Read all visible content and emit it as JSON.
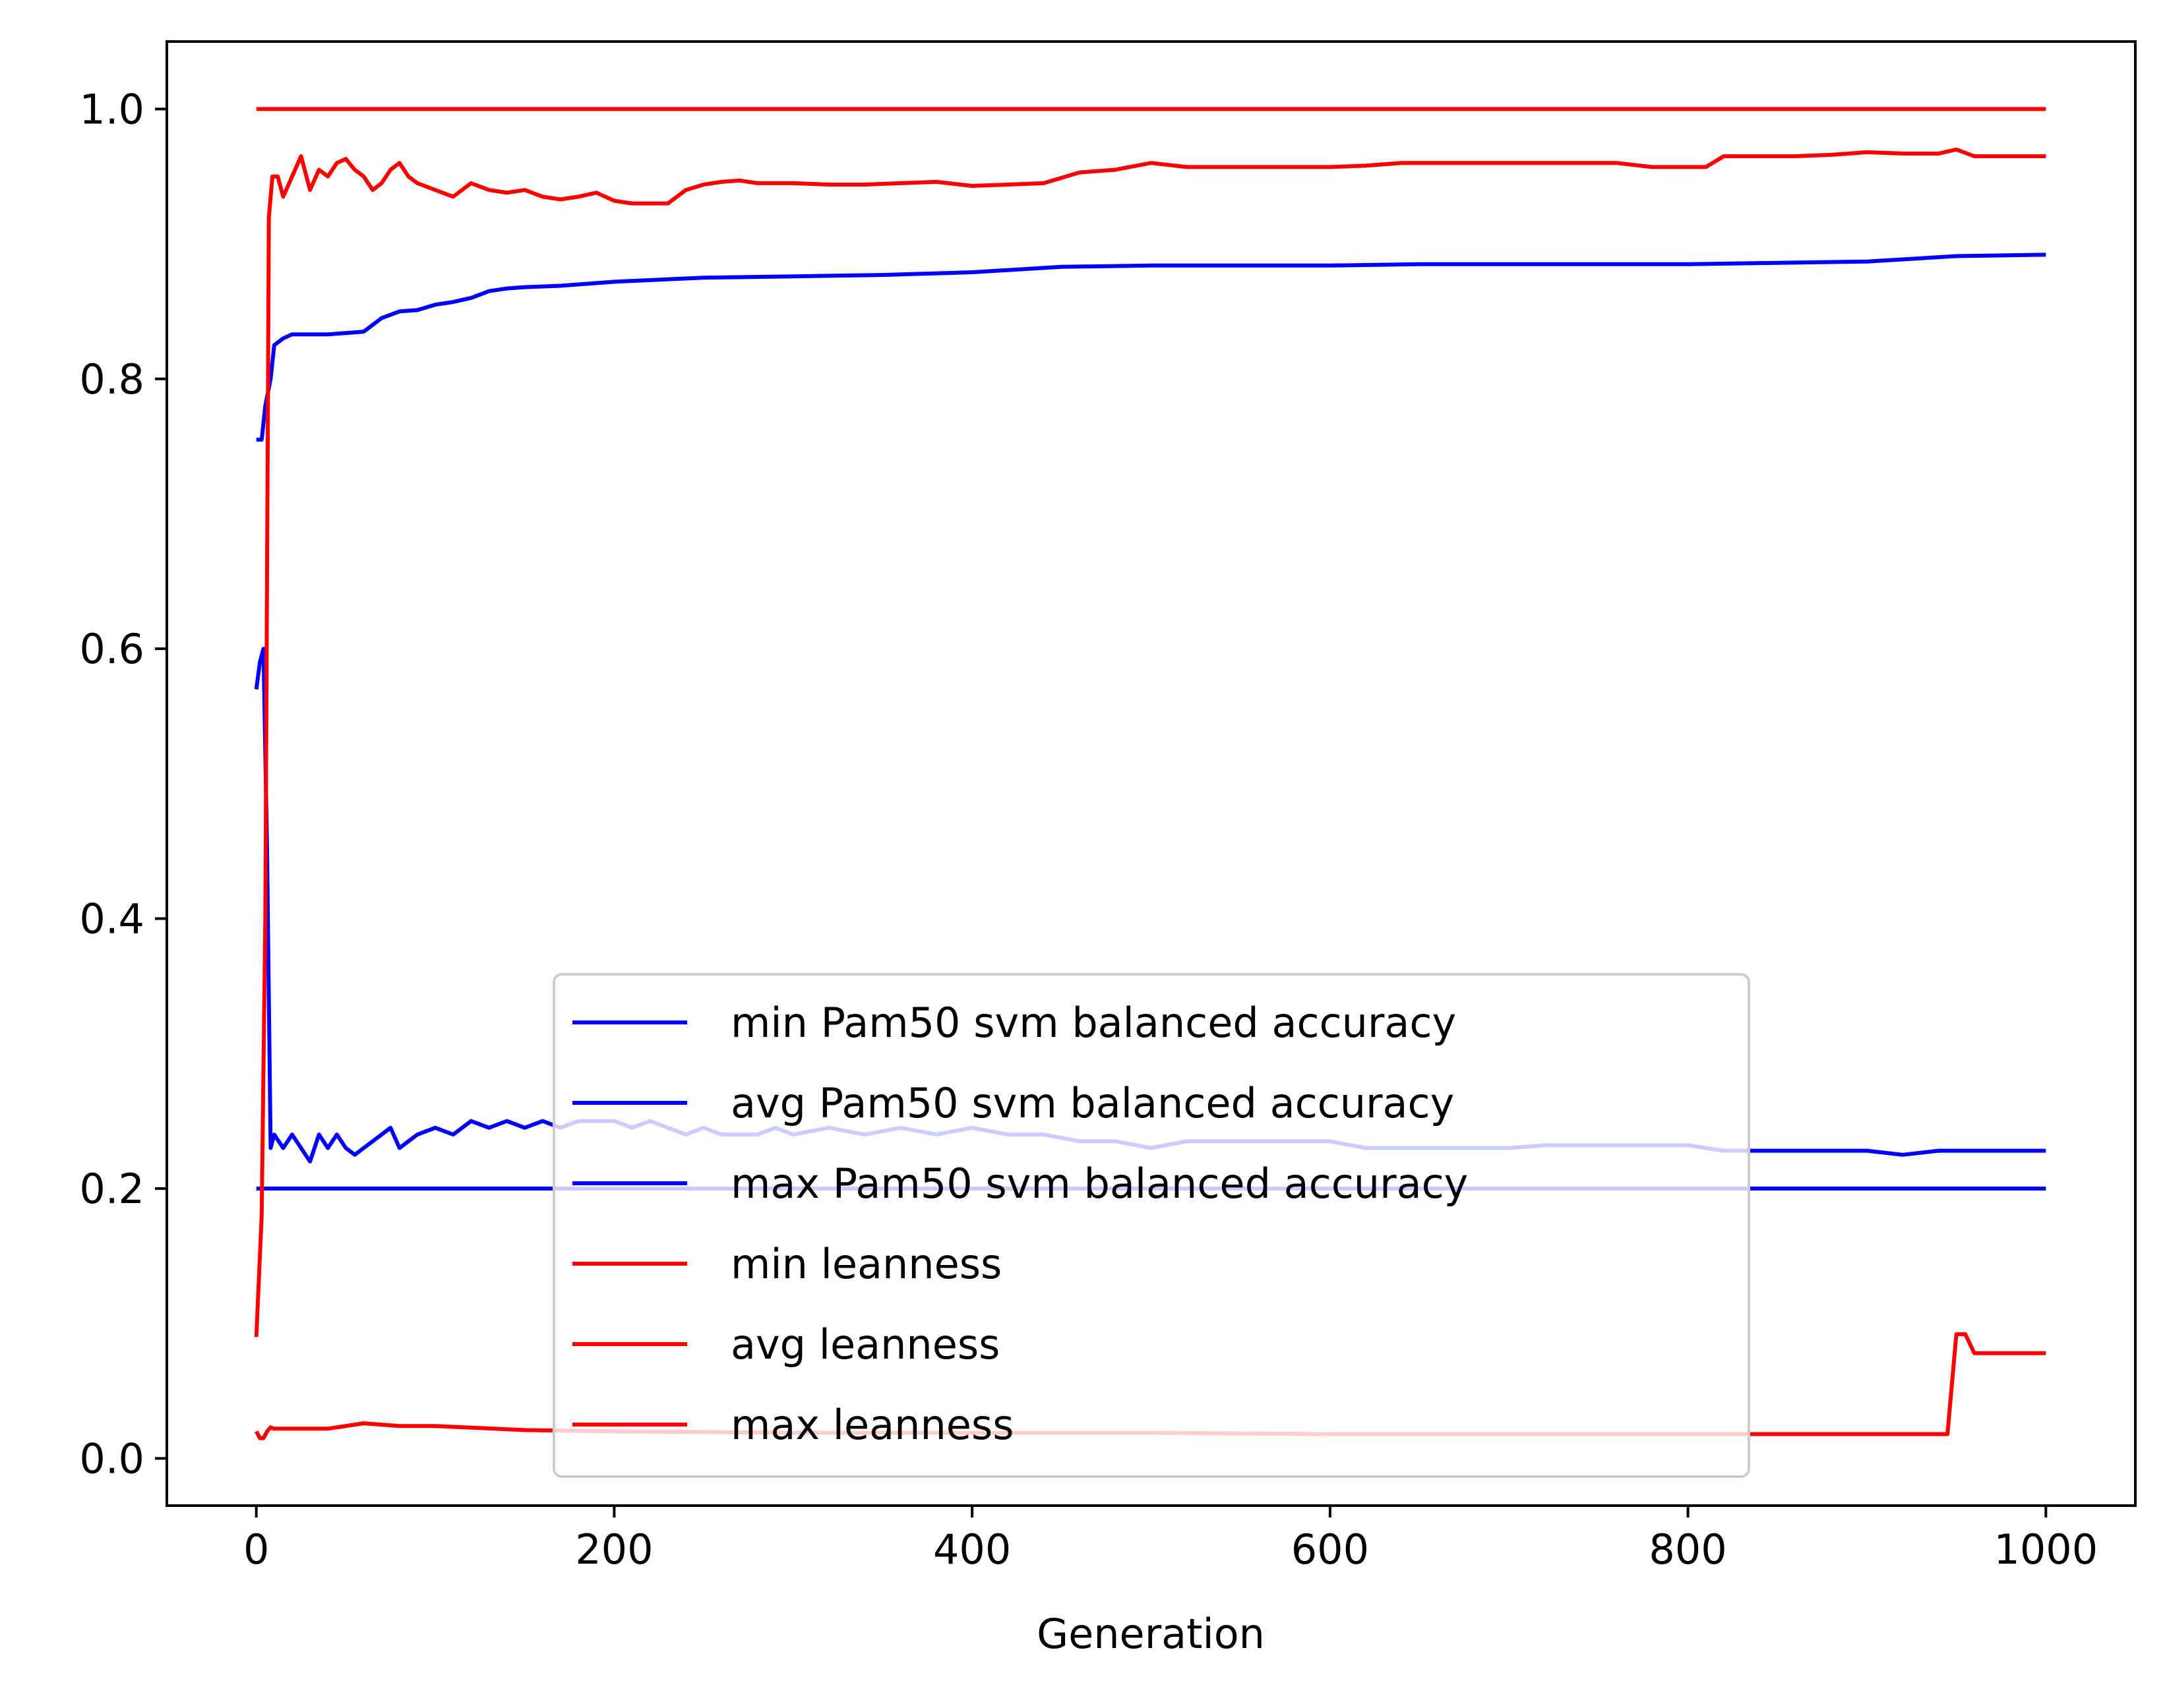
{
  "chart_data": {
    "type": "line",
    "title": "",
    "xlabel": "Generation",
    "ylabel": "",
    "xlim": [
      -50,
      1050
    ],
    "ylim": [
      -0.035,
      1.05
    ],
    "xticks": [
      0,
      200,
      400,
      600,
      800,
      1000
    ],
    "xtick_labels": [
      "0",
      "200",
      "400",
      "600",
      "800",
      "1000"
    ],
    "yticks": [
      0.0,
      0.2,
      0.4,
      0.6,
      0.8,
      1.0
    ],
    "ytick_labels": [
      "0.0",
      "0.2",
      "0.4",
      "0.6",
      "0.8",
      "1.0"
    ],
    "grid": false,
    "legend_position": "lower center",
    "series": [
      {
        "name": "min Pam50 svm balanced accuracy",
        "color": "#0000ff",
        "x": [
          0,
          5,
          6,
          8,
          10,
          20,
          50,
          100,
          1000
        ],
        "y": [
          0.2,
          0.2,
          0.2,
          0.2,
          0.2,
          0.2,
          0.2,
          0.2,
          0.2
        ]
      },
      {
        "name": "avg Pam50 svm balanced accuracy",
        "color": "#0000ff",
        "x": [
          0,
          2,
          4,
          6,
          8,
          10,
          15,
          20,
          25,
          30,
          35,
          40,
          45,
          50,
          55,
          60,
          65,
          70,
          75,
          80,
          85,
          90,
          100,
          110,
          120,
          130,
          140,
          150,
          160,
          170,
          180,
          190,
          200,
          210,
          220,
          230,
          240,
          250,
          260,
          270,
          280,
          290,
          300,
          320,
          340,
          360,
          380,
          400,
          420,
          440,
          460,
          480,
          500,
          520,
          540,
          560,
          580,
          600,
          620,
          640,
          660,
          680,
          700,
          720,
          740,
          760,
          780,
          800,
          820,
          840,
          860,
          880,
          900,
          920,
          940,
          960,
          980,
          1000
        ],
        "y": [
          0.57,
          0.59,
          0.6,
          0.45,
          0.23,
          0.24,
          0.23,
          0.24,
          0.23,
          0.22,
          0.24,
          0.23,
          0.24,
          0.23,
          0.225,
          0.23,
          0.235,
          0.24,
          0.245,
          0.23,
          0.235,
          0.24,
          0.245,
          0.24,
          0.25,
          0.245,
          0.25,
          0.245,
          0.25,
          0.245,
          0.25,
          0.25,
          0.25,
          0.245,
          0.25,
          0.245,
          0.24,
          0.245,
          0.24,
          0.24,
          0.24,
          0.245,
          0.24,
          0.245,
          0.24,
          0.245,
          0.24,
          0.245,
          0.24,
          0.24,
          0.235,
          0.235,
          0.23,
          0.235,
          0.235,
          0.235,
          0.235,
          0.235,
          0.23,
          0.23,
          0.23,
          0.23,
          0.23,
          0.232,
          0.232,
          0.232,
          0.232,
          0.232,
          0.228,
          0.228,
          0.228,
          0.228,
          0.228,
          0.225,
          0.228,
          0.228,
          0.228,
          0.228
        ]
      },
      {
        "name": "max Pam50 svm balanced accuracy",
        "color": "#0000ff",
        "x": [
          0,
          3,
          5,
          8,
          10,
          15,
          20,
          30,
          40,
          50,
          60,
          70,
          80,
          90,
          100,
          110,
          120,
          130,
          140,
          150,
          170,
          200,
          250,
          300,
          350,
          400,
          450,
          500,
          550,
          600,
          650,
          700,
          750,
          800,
          850,
          900,
          950,
          1000
        ],
        "y": [
          0.755,
          0.755,
          0.78,
          0.8,
          0.825,
          0.83,
          0.833,
          0.833,
          0.833,
          0.834,
          0.835,
          0.845,
          0.85,
          0.851,
          0.855,
          0.857,
          0.86,
          0.865,
          0.867,
          0.868,
          0.869,
          0.872,
          0.875,
          0.876,
          0.877,
          0.879,
          0.883,
          0.884,
          0.884,
          0.884,
          0.885,
          0.885,
          0.885,
          0.885,
          0.886,
          0.887,
          0.891,
          0.892
        ]
      },
      {
        "name": "min leanness",
        "color": "#ff0000",
        "x": [
          0,
          2,
          4,
          6,
          8,
          10,
          20,
          40,
          60,
          80,
          100,
          150,
          200,
          300,
          400,
          500,
          600,
          700,
          800,
          900,
          940,
          945,
          950,
          955,
          960,
          1000
        ],
        "y": [
          0.02,
          0.015,
          0.015,
          0.02,
          0.023,
          0.022,
          0.022,
          0.022,
          0.026,
          0.024,
          0.024,
          0.021,
          0.02,
          0.019,
          0.019,
          0.019,
          0.018,
          0.018,
          0.018,
          0.018,
          0.018,
          0.018,
          0.092,
          0.092,
          0.078,
          0.078
        ]
      },
      {
        "name": "avg leanness",
        "color": "#ff0000",
        "x": [
          0,
          3,
          5,
          7,
          9,
          12,
          15,
          20,
          25,
          30,
          35,
          40,
          45,
          50,
          55,
          60,
          65,
          70,
          75,
          80,
          85,
          90,
          100,
          110,
          120,
          130,
          140,
          150,
          160,
          170,
          180,
          190,
          200,
          210,
          220,
          230,
          240,
          250,
          260,
          270,
          280,
          300,
          320,
          340,
          360,
          380,
          400,
          420,
          440,
          460,
          480,
          500,
          520,
          540,
          560,
          580,
          600,
          620,
          640,
          660,
          680,
          700,
          720,
          740,
          760,
          780,
          800,
          810,
          820,
          840,
          860,
          880,
          900,
          920,
          940,
          950,
          960,
          980,
          1000
        ],
        "y": [
          0.09,
          0.18,
          0.4,
          0.92,
          0.95,
          0.95,
          0.935,
          0.95,
          0.965,
          0.94,
          0.955,
          0.95,
          0.96,
          0.963,
          0.955,
          0.95,
          0.94,
          0.945,
          0.955,
          0.96,
          0.95,
          0.945,
          0.94,
          0.935,
          0.945,
          0.94,
          0.938,
          0.94,
          0.935,
          0.933,
          0.935,
          0.938,
          0.932,
          0.93,
          0.93,
          0.93,
          0.94,
          0.944,
          0.946,
          0.947,
          0.945,
          0.945,
          0.944,
          0.944,
          0.945,
          0.946,
          0.943,
          0.944,
          0.945,
          0.953,
          0.955,
          0.96,
          0.957,
          0.957,
          0.957,
          0.957,
          0.957,
          0.958,
          0.96,
          0.96,
          0.96,
          0.96,
          0.96,
          0.96,
          0.96,
          0.957,
          0.957,
          0.957,
          0.965,
          0.965,
          0.965,
          0.966,
          0.968,
          0.967,
          0.967,
          0.97,
          0.965,
          0.965,
          0.965
        ]
      },
      {
        "name": "max leanness",
        "color": "#ff0000",
        "x": [
          0,
          1000
        ],
        "y": [
          1.0,
          1.0
        ]
      }
    ]
  }
}
